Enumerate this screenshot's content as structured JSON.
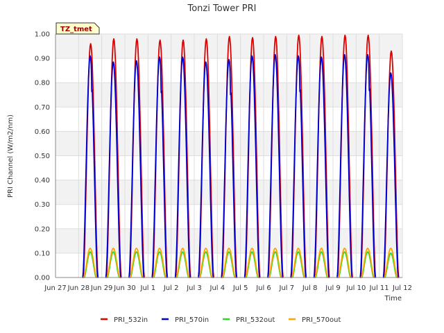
{
  "chart_data": {
    "type": "line",
    "title": "Tonzi Tower PRI",
    "xlabel": "Time",
    "ylabel": "PRI Channel (W/m2/nm)",
    "ylim": [
      0,
      1.0
    ],
    "xlim_days": [
      0,
      15
    ],
    "y_ticks": [
      "0.00",
      "0.10",
      "0.20",
      "0.30",
      "0.40",
      "0.50",
      "0.60",
      "0.70",
      "0.80",
      "0.90",
      "1.00"
    ],
    "x_ticks": [
      "Jun 27",
      "Jun 28",
      "Jun 29",
      "Jun 30",
      "Jul 1",
      "Jul 2",
      "Jul 3",
      "Jul 4",
      "Jul 5",
      "Jul 6",
      "Jul 7",
      "Jul 8",
      "Jul 9",
      "Jul 10",
      "Jul 11",
      "Jul 12"
    ],
    "badge": "TZ_tmet",
    "grid": true,
    "legend_position": "bottom",
    "day_centers": [
      1.5,
      2.5,
      3.5,
      4.5,
      5.5,
      6.5,
      7.5,
      8.5,
      9.5,
      10.5,
      11.5,
      12.5,
      13.5,
      14.5
    ],
    "series": [
      {
        "name": "PRI_532in",
        "color": "#dd0000",
        "daily_peaks": [
          0.96,
          0.98,
          0.98,
          0.975,
          0.975,
          0.98,
          0.99,
          0.985,
          0.99,
          0.995,
          0.99,
          0.995,
          0.995,
          0.93
        ]
      },
      {
        "name": "PRI_570in",
        "color": "#0000cc",
        "daily_peaks": [
          0.91,
          0.885,
          0.89,
          0.905,
          0.905,
          0.885,
          0.895,
          0.91,
          0.915,
          0.91,
          0.905,
          0.915,
          0.915,
          0.84
        ]
      },
      {
        "name": "PRI_532out",
        "color": "#22dd22",
        "daily_peaks": [
          0.105,
          0.105,
          0.105,
          0.105,
          0.105,
          0.105,
          0.105,
          0.105,
          0.105,
          0.105,
          0.105,
          0.105,
          0.105,
          0.1
        ]
      },
      {
        "name": "PRI_570out",
        "color": "#ffa500",
        "daily_peaks": [
          0.12,
          0.12,
          0.12,
          0.12,
          0.12,
          0.12,
          0.12,
          0.12,
          0.12,
          0.12,
          0.12,
          0.12,
          0.12,
          0.12
        ]
      }
    ]
  }
}
